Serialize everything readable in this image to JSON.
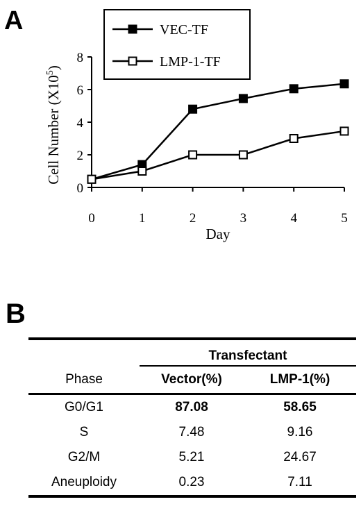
{
  "panel_a": {
    "letter": "A"
  },
  "chart_data": {
    "type": "line",
    "x": [
      0,
      1,
      2,
      3,
      4,
      5
    ],
    "series": [
      {
        "name": "VEC-TF",
        "marker": "filled-square",
        "color": "#000000",
        "values": [
          0.5,
          1.4,
          4.8,
          5.45,
          6.05,
          6.35
        ]
      },
      {
        "name": "LMP-1-TF",
        "marker": "open-square",
        "color": "#000000",
        "values": [
          0.5,
          1.0,
          2.0,
          2.0,
          3.0,
          3.45
        ]
      }
    ],
    "xlabel": "Day",
    "ylabel": "Cell Number (X10",
    "ylabel_sup": "5",
    "ylabel_close": ")",
    "xticks": [
      "0",
      "1",
      "2",
      "3",
      "4",
      "5"
    ],
    "yticks": [
      "0",
      "2",
      "4",
      "6",
      "8"
    ],
    "xlim": [
      0,
      5
    ],
    "ylim": [
      0,
      8
    ],
    "grid": false,
    "legend_position": "top-left"
  },
  "panel_b": {
    "letter": "B",
    "group_header": "Transfectant",
    "columns": [
      "Phase",
      "Vector(%)",
      "LMP-1(%)"
    ],
    "rows": [
      [
        "G0/G1",
        "87.08",
        "58.65"
      ],
      [
        "S",
        "7.48",
        "9.16"
      ],
      [
        "G2/M",
        "5.21",
        "24.67"
      ],
      [
        "Aneuploidy",
        "0.23",
        "7.11"
      ]
    ]
  }
}
